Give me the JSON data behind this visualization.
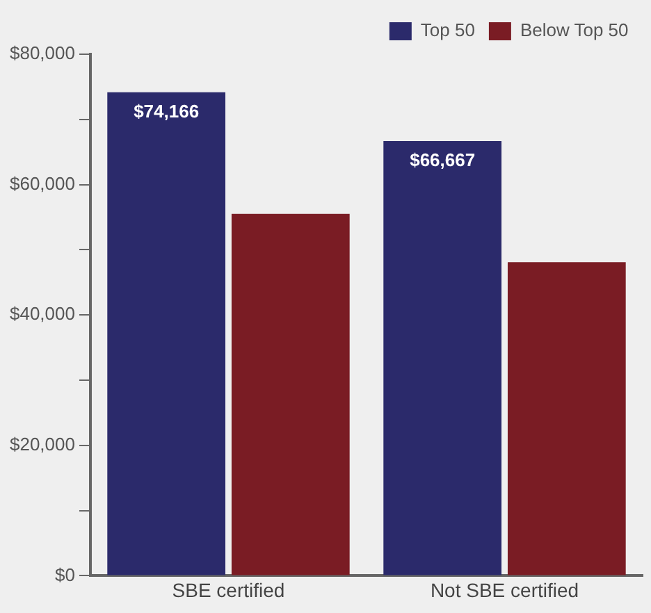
{
  "chart_data": {
    "type": "bar",
    "categories": [
      "SBE certified",
      "Not SBE certified"
    ],
    "series": [
      {
        "name": "Top 50",
        "color": "#2b2a6b",
        "values": [
          74166,
          66667
        ],
        "value_labels": [
          "$74,166",
          "$66,667"
        ]
      },
      {
        "name": "Below Top 50",
        "color": "#7a1c24",
        "values": [
          55500,
          48100
        ],
        "value_labels": [
          null,
          null
        ]
      }
    ],
    "ylim": [
      0,
      80000
    ],
    "yticks": [
      {
        "value": 0,
        "label": "$0"
      },
      {
        "value": 10000,
        "label": null
      },
      {
        "value": 20000,
        "label": "$20,000"
      },
      {
        "value": 30000,
        "label": null
      },
      {
        "value": 40000,
        "label": "$40,000"
      },
      {
        "value": 50000,
        "label": null
      },
      {
        "value": 60000,
        "label": "$60,000"
      },
      {
        "value": 70000,
        "label": null
      },
      {
        "value": 80000,
        "label": "$80,000"
      }
    ],
    "grid": false,
    "legend": "top right"
  }
}
